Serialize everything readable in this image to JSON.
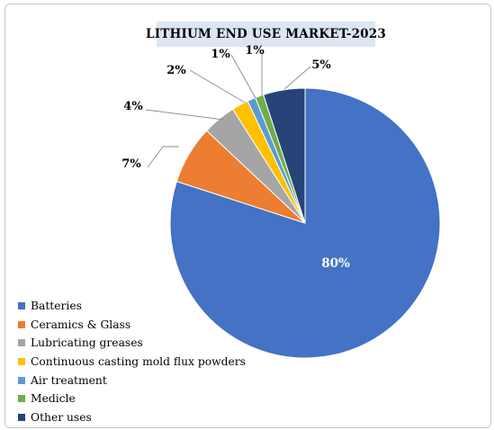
{
  "chart_data": {
    "type": "pie",
    "title": "LITHIUM END USE MARKET-2023",
    "legend_position": "bottom-left",
    "slices": [
      {
        "name": "Batteries",
        "value": 80,
        "label": "80%",
        "color": "#4472c4"
      },
      {
        "name": "Ceramics & Glass",
        "value": 7,
        "label": "7%",
        "color": "#ed7d31"
      },
      {
        "name": "Lubricating greases",
        "value": 4,
        "label": "4%",
        "color": "#a5a5a5"
      },
      {
        "name": "Continuous casting mold flux powders",
        "value": 2,
        "label": "2%",
        "color": "#ffc000"
      },
      {
        "name": "Air treatment",
        "value": 1,
        "label": "1%",
        "color": "#5b9bd5"
      },
      {
        "name": "Medicle",
        "value": 1,
        "label": "1%",
        "color": "#70ad47"
      },
      {
        "name": "Other uses",
        "value": 5,
        "label": "5%",
        "color": "#264478"
      }
    ]
  }
}
